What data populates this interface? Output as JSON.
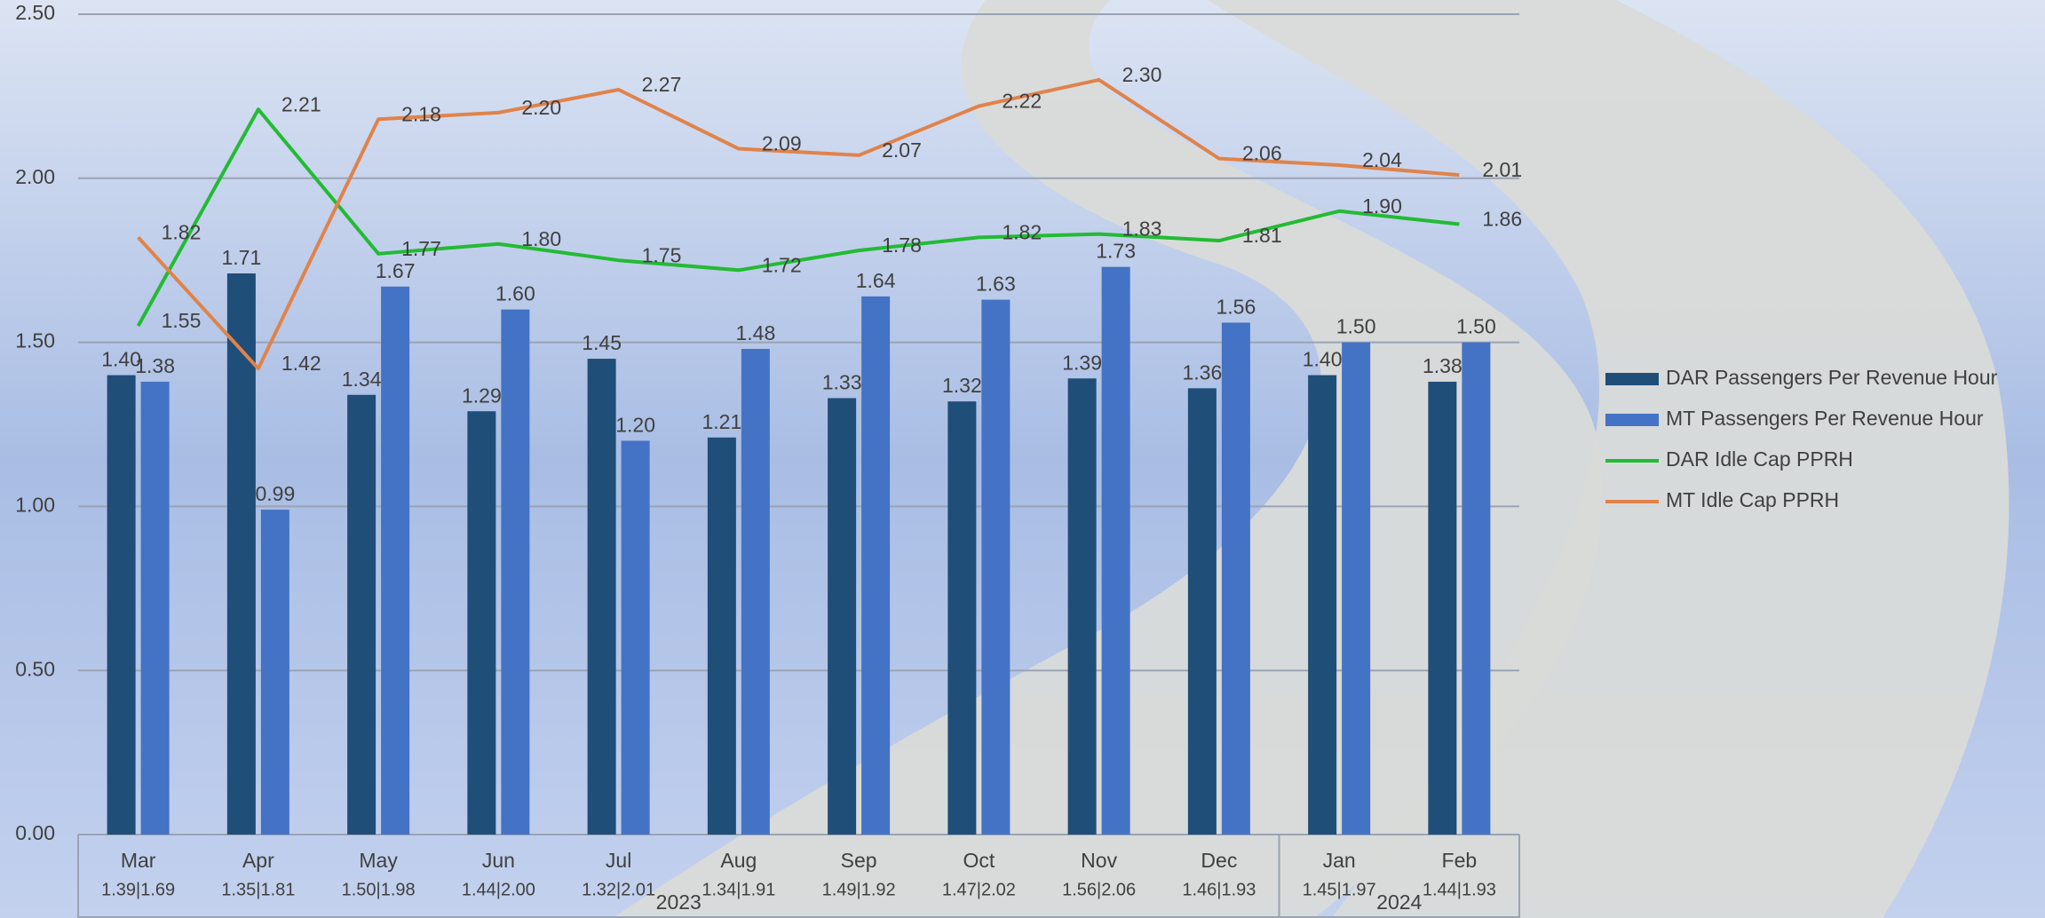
{
  "chart_data": {
    "type": "bar-line",
    "categories": [
      "Mar",
      "Apr",
      "May",
      "Jun",
      "Jul",
      "Aug",
      "Sep",
      "Oct",
      "Nov",
      "Dec",
      "Jan",
      "Feb"
    ],
    "category_sublabels": [
      "1.39|1.69",
      "1.35|1.81",
      "1.50|1.98",
      "1.44|2.00",
      "1.32|2.01",
      "1.34|1.91",
      "1.49|1.92",
      "1.47|2.02",
      "1.56|2.06",
      "1.46|1.93",
      "1.45|1.97",
      "1.44|1.93"
    ],
    "category_groups": [
      "2023",
      "2023",
      "2023",
      "2023",
      "2023",
      "2023",
      "2023",
      "2023",
      "2023",
      "2023",
      "2024",
      "2024"
    ],
    "series": [
      {
        "name": "DAR Passengers Per Revenue Hour",
        "type": "bar",
        "color": "#1f4e79",
        "values": [
          1.4,
          1.71,
          1.34,
          1.29,
          1.45,
          1.21,
          1.33,
          1.32,
          1.39,
          1.36,
          1.4,
          1.38
        ],
        "value_labels": [
          "1.40",
          "1.71",
          "1.34",
          "1.29",
          "1.45",
          "1.21",
          "1.33",
          "1.32",
          "1.39",
          "1.36",
          "1.40",
          "1.38"
        ]
      },
      {
        "name": "MT Passengers Per Revenue Hour",
        "type": "bar",
        "color": "#4472c4",
        "values": [
          1.38,
          0.99,
          1.67,
          1.6,
          1.2,
          1.48,
          1.64,
          1.63,
          1.73,
          1.56,
          1.5,
          1.5
        ],
        "value_labels": [
          "1.38",
          "0.99",
          "1.67",
          "1.60",
          "1.20",
          "1.48",
          "1.64",
          "1.63",
          "1.73",
          "1.56",
          "1.50",
          "1.50"
        ]
      },
      {
        "name": "DAR Idle Cap PPRH",
        "type": "line",
        "color": "#22bb33",
        "values": [
          1.55,
          2.21,
          1.77,
          1.8,
          1.75,
          1.72,
          1.78,
          1.82,
          1.83,
          1.81,
          1.9,
          1.86
        ],
        "value_labels": [
          "1.55",
          "2.21",
          "1.77",
          "1.80",
          "1.75",
          "1.72",
          "1.78",
          "1.82",
          "1.83",
          "1.81",
          "1.90",
          "1.86"
        ]
      },
      {
        "name": "MT Idle Cap PPRH",
        "type": "line",
        "color": "#e0834a",
        "values": [
          1.82,
          1.42,
          2.18,
          2.2,
          2.27,
          2.09,
          2.07,
          2.22,
          2.3,
          2.06,
          2.04,
          2.01
        ],
        "value_labels": [
          "1.82",
          "1.42",
          "2.18",
          "2.20",
          "2.27",
          "2.09",
          "2.07",
          "2.22",
          "2.30",
          "2.06",
          "2.04",
          "2.01"
        ]
      }
    ],
    "ylim": [
      0,
      2.5
    ],
    "yticks": [
      {
        "value": 0,
        "label": "0.00"
      },
      {
        "value": 0.5,
        "label": "0.50"
      },
      {
        "value": 1,
        "label": "1.00"
      },
      {
        "value": 1.5,
        "label": "1.50"
      },
      {
        "value": 2,
        "label": "2.00"
      },
      {
        "value": 2.5,
        "label": "2.50"
      }
    ],
    "grid": true,
    "legend": "right"
  }
}
